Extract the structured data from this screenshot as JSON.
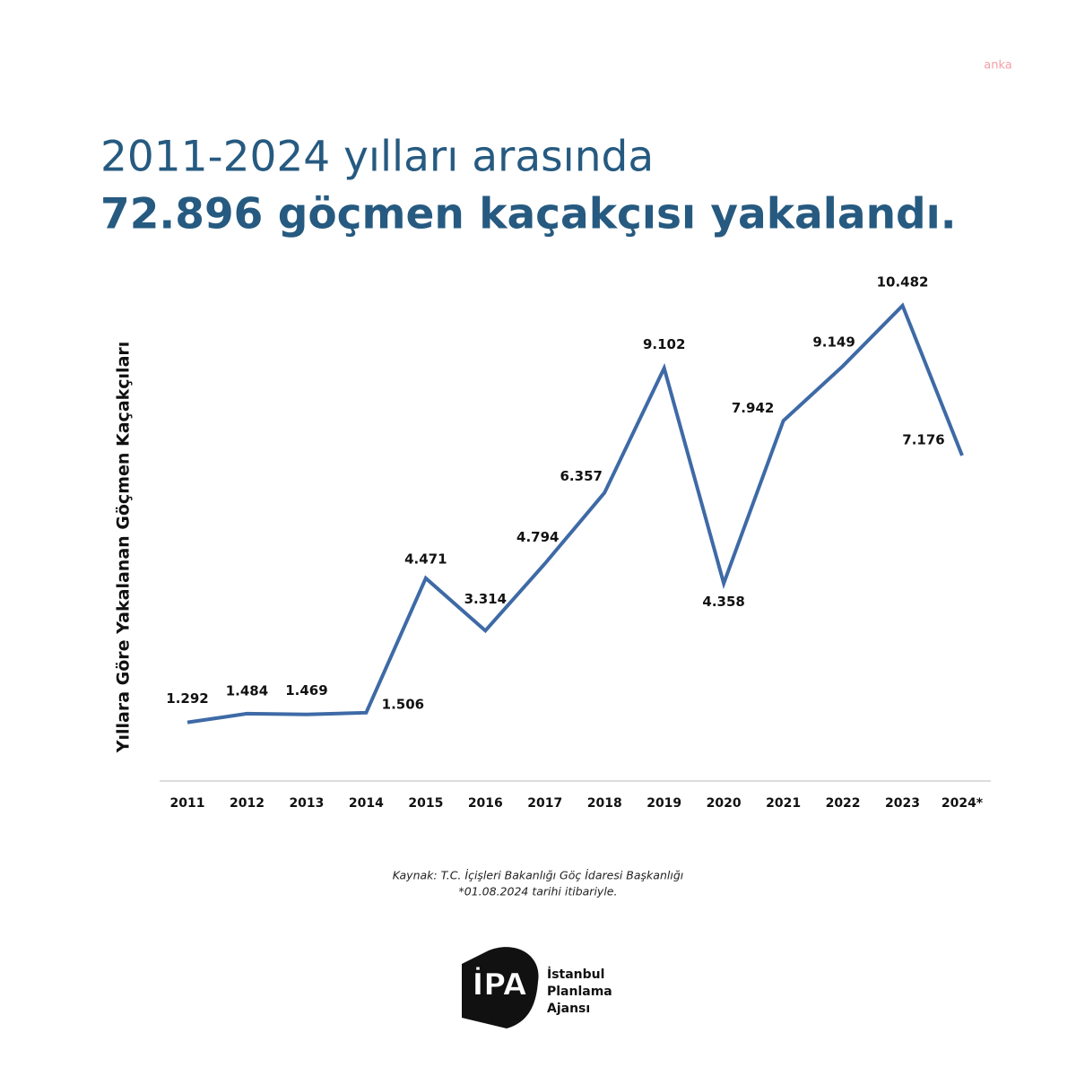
{
  "chart_data": {
    "type": "line",
    "title": "2011-2024 yılları arasında",
    "subtitle": "72.896 göçmen kaçakçısı yakalandı.",
    "y_label": "Yıllara Göre Yakalanan Göçmen Kaçakçıları",
    "categories": [
      "2011",
      "2012",
      "2013",
      "2014",
      "2015",
      "2016",
      "2017",
      "2018",
      "2019",
      "2020",
      "2021",
      "2022",
      "2023",
      "2024*"
    ],
    "values": [
      1292,
      1484,
      1469,
      1506,
      4471,
      3314,
      4794,
      6357,
      9102,
      4358,
      7942,
      9149,
      10482,
      7176
    ],
    "value_labels": [
      "1.292",
      "1.484",
      "1.469",
      "1.506",
      "4.471",
      "3.314",
      "4.794",
      "6.357",
      "9.102",
      "4.358",
      "7.942",
      "9.149",
      "10.482",
      "7.176"
    ],
    "color": "#3e6aa6",
    "ylim": [
      0,
      12000
    ],
    "source": "Kaynak: T.C. İçişleri Bakanlığı Göç İdaresi Başkanlığı",
    "note": "*01.08.2024 tarihi itibariyle.",
    "watermark": "anka"
  },
  "logo": {
    "mark": "İPA",
    "lines": [
      "İstanbul",
      "Planlama",
      "Ajansı"
    ]
  }
}
